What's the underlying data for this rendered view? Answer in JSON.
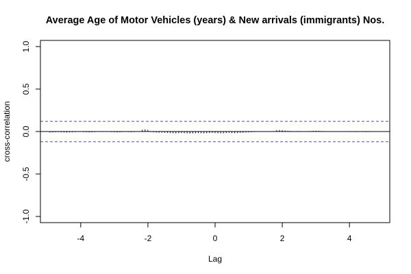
{
  "chart_data": {
    "type": "bar",
    "title": "Average Age of Motor Vehicles (years) & New arrivals (immigrants) Nos.",
    "xlabel": "Lag",
    "ylabel": "cross-correlation",
    "xlim": [
      -5.2,
      5.2
    ],
    "ylim": [
      -1.0,
      1.0
    ],
    "xticks": [
      -4,
      -2,
      0,
      2,
      4
    ],
    "xtick_labels": [
      "-4",
      "-2",
      "0",
      "2",
      "4"
    ],
    "yticks": [
      -1.0,
      -0.5,
      0.0,
      0.5,
      1.0
    ],
    "ytick_labels": [
      "-1.0",
      "-0.5",
      "0.0",
      "0.5",
      "1.0"
    ],
    "confidence_limits": [
      0.12,
      -0.12
    ],
    "grid": false,
    "lags": [
      -4.9167,
      -4.8333,
      -4.75,
      -4.6667,
      -4.5833,
      -4.5,
      -4.4167,
      -4.3333,
      -4.25,
      -4.1667,
      -4.0833,
      -4.0,
      -3.9167,
      -3.8333,
      -3.75,
      -3.6667,
      -3.5833,
      -3.5,
      -3.4167,
      -3.3333,
      -3.25,
      -3.1667,
      -3.0833,
      -3.0,
      -2.9167,
      -2.8333,
      -2.75,
      -2.6667,
      -2.5833,
      -2.5,
      -2.4167,
      -2.3333,
      -2.25,
      -2.1667,
      -2.0833,
      -2.0,
      -1.9167,
      -1.8333,
      -1.75,
      -1.6667,
      -1.5833,
      -1.5,
      -1.4167,
      -1.3333,
      -1.25,
      -1.1667,
      -1.0833,
      -1.0,
      -0.9167,
      -0.8333,
      -0.75,
      -0.6667,
      -0.5833,
      -0.5,
      -0.4167,
      -0.3333,
      -0.25,
      -0.1667,
      -0.0833,
      0.0,
      0.0833,
      0.1667,
      0.25,
      0.3333,
      0.4167,
      0.5,
      0.5833,
      0.6667,
      0.75,
      0.8333,
      0.9167,
      1.0,
      1.0833,
      1.1667,
      1.25,
      1.3333,
      1.4167,
      1.5,
      1.5833,
      1.6667,
      1.75,
      1.8333,
      1.9167,
      2.0,
      2.0833,
      2.1667,
      2.25,
      2.3333,
      2.4167,
      2.5,
      2.5833,
      2.6667,
      2.75,
      2.8333,
      2.9167,
      3.0,
      3.0833,
      3.1667,
      3.25,
      3.3333,
      3.4167,
      3.5,
      3.5833,
      3.6667,
      3.75,
      3.8333,
      3.9167,
      4.0,
      4.0833,
      4.1667,
      4.25,
      4.3333,
      4.4167,
      4.5,
      4.5833,
      4.6667,
      4.75,
      4.8333,
      4.9167
    ],
    "values": [
      -0.012,
      -0.01,
      -0.008,
      -0.006,
      -0.008,
      -0.01,
      -0.012,
      -0.01,
      -0.008,
      -0.006,
      0.003,
      -0.004,
      -0.006,
      -0.008,
      -0.01,
      -0.008,
      -0.006,
      -0.004,
      0.003,
      0.005,
      0.003,
      -0.004,
      -0.006,
      -0.008,
      -0.01,
      -0.008,
      -0.006,
      -0.004,
      -0.006,
      -0.008,
      -0.006,
      -0.004,
      0.003,
      0.02,
      0.025,
      0.018,
      -0.006,
      -0.01,
      -0.012,
      -0.014,
      -0.012,
      -0.014,
      -0.016,
      -0.018,
      -0.02,
      -0.022,
      -0.02,
      -0.018,
      -0.02,
      -0.022,
      -0.024,
      -0.022,
      -0.02,
      -0.018,
      -0.02,
      -0.022,
      -0.02,
      -0.018,
      -0.016,
      -0.018,
      -0.02,
      -0.022,
      -0.02,
      -0.018,
      -0.016,
      -0.018,
      -0.02,
      -0.018,
      -0.016,
      -0.014,
      -0.012,
      -0.01,
      -0.008,
      -0.006,
      -0.004,
      -0.003,
      0.003,
      0.004,
      -0.004,
      -0.003,
      0.005,
      0.015,
      0.018,
      0.016,
      0.012,
      0.008,
      0.006,
      0.004,
      0.005,
      0.006,
      0.004,
      0.003,
      0.004,
      0.006,
      0.008,
      0.01,
      0.008,
      0.006,
      0.005,
      0.004,
      0.003,
      0.004,
      0.003,
      -0.003,
      -0.004,
      -0.003,
      -0.004,
      -0.005,
      -0.004,
      -0.006,
      -0.005,
      -0.004,
      -0.005,
      -0.006,
      -0.005,
      -0.004,
      -0.003,
      -0.004,
      -0.003
    ]
  }
}
